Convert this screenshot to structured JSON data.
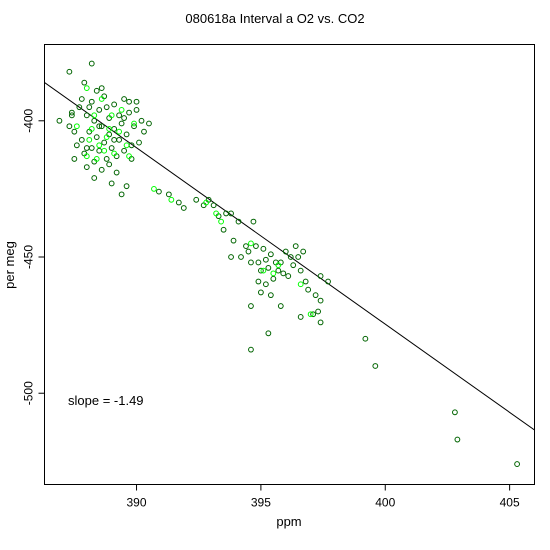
{
  "chart_data": {
    "type": "scatter",
    "title": "080618a   Interval a O2 vs. CO2",
    "xlabel": "ppm",
    "ylabel": "per meg",
    "xlim": [
      386.3,
      406.0
    ],
    "ylim": [
      -533.5,
      -372.0
    ],
    "xticks": [
      390,
      395,
      400,
      405
    ],
    "yticks": [
      -400,
      -450,
      -500
    ],
    "grid": false,
    "annotation": "slope =  -1.49",
    "fit_line": {
      "slope": -1.49,
      "points": [
        [
          386.0,
          -384.0
        ],
        [
          406.0,
          -513.5
        ]
      ]
    },
    "marker_colors": {
      "dark": "#006400",
      "light": "#00ff00"
    },
    "series": [
      {
        "color": "dark",
        "points": [
          [
            388.2,
            -379
          ],
          [
            387.3,
            -382
          ],
          [
            387.9,
            -386
          ],
          [
            388.6,
            -388
          ],
          [
            386.9,
            -400
          ],
          [
            387.3,
            -402
          ],
          [
            387.4,
            -397
          ],
          [
            387.5,
            -404
          ],
          [
            387.6,
            -409
          ],
          [
            387.7,
            -395
          ],
          [
            387.8,
            -407
          ],
          [
            387.9,
            -412
          ],
          [
            388.0,
            -398
          ],
          [
            388.1,
            -404
          ],
          [
            388.2,
            -410
          ],
          [
            388.2,
            -393
          ],
          [
            388.3,
            -400
          ],
          [
            388.3,
            -415
          ],
          [
            388.4,
            -406
          ],
          [
            388.5,
            -396
          ],
          [
            388.5,
            -411
          ],
          [
            388.6,
            -402
          ],
          [
            388.7,
            -408
          ],
          [
            388.7,
            -391
          ],
          [
            388.8,
            -414
          ],
          [
            388.9,
            -399
          ],
          [
            388.9,
            -405
          ],
          [
            389.0,
            -410
          ],
          [
            389.1,
            -394
          ],
          [
            389.1,
            -403
          ],
          [
            389.2,
            -413
          ],
          [
            389.3,
            -398
          ],
          [
            389.3,
            -407
          ],
          [
            389.4,
            -401
          ],
          [
            389.5,
            -411
          ],
          [
            389.5,
            -392
          ],
          [
            389.6,
            -405
          ],
          [
            389.7,
            -397
          ],
          [
            389.8,
            -409
          ],
          [
            389.9,
            -402
          ],
          [
            390.0,
            -396
          ],
          [
            390.1,
            -408
          ],
          [
            390.2,
            -400
          ],
          [
            390.3,
            -404
          ],
          [
            390.5,
            -401
          ],
          [
            388.0,
            -417
          ],
          [
            388.6,
            -418
          ],
          [
            389.2,
            -419
          ],
          [
            387.5,
            -414
          ],
          [
            389.8,
            -414
          ],
          [
            388.3,
            -421
          ],
          [
            389.0,
            -423
          ],
          [
            389.4,
            -427
          ],
          [
            389.6,
            -424
          ],
          [
            388.9,
            -416
          ],
          [
            387.8,
            -392
          ],
          [
            388.4,
            -389
          ],
          [
            389.7,
            -393
          ],
          [
            390.0,
            -393
          ],
          [
            387.4,
            -398
          ],
          [
            388.1,
            -395
          ],
          [
            388.8,
            -395
          ],
          [
            389.5,
            -399
          ],
          [
            388.5,
            -402
          ],
          [
            389.1,
            -407
          ],
          [
            388.0,
            -410
          ],
          [
            390.9,
            -426
          ],
          [
            391.3,
            -427
          ],
          [
            391.7,
            -430
          ],
          [
            391.9,
            -432
          ],
          [
            392.4,
            -429
          ],
          [
            392.7,
            -431
          ],
          [
            392.9,
            -429
          ],
          [
            393.1,
            -431
          ],
          [
            393.3,
            -435
          ],
          [
            393.6,
            -434
          ],
          [
            393.8,
            -434
          ],
          [
            394.1,
            -437
          ],
          [
            393.5,
            -440
          ],
          [
            393.9,
            -444
          ],
          [
            393.8,
            -450
          ],
          [
            394.2,
            -450
          ],
          [
            394.4,
            -446
          ],
          [
            394.5,
            -448
          ],
          [
            394.6,
            -452
          ],
          [
            394.7,
            -437
          ],
          [
            394.8,
            -446
          ],
          [
            394.9,
            -452
          ],
          [
            395.0,
            -455
          ],
          [
            395.1,
            -447
          ],
          [
            395.2,
            -451
          ],
          [
            395.3,
            -454
          ],
          [
            395.4,
            -449
          ],
          [
            395.5,
            -458
          ],
          [
            395.6,
            -452
          ],
          [
            395.7,
            -455
          ],
          [
            395.8,
            -452
          ],
          [
            395.9,
            -456
          ],
          [
            396.0,
            -448
          ],
          [
            396.1,
            -457
          ],
          [
            396.2,
            -450
          ],
          [
            396.3,
            -453
          ],
          [
            396.4,
            -446
          ],
          [
            396.5,
            -450
          ],
          [
            396.6,
            -455
          ],
          [
            396.7,
            -448
          ],
          [
            396.8,
            -459
          ],
          [
            396.9,
            -462
          ],
          [
            394.9,
            -459
          ],
          [
            395.0,
            -463
          ],
          [
            395.2,
            -460
          ],
          [
            394.6,
            -468
          ],
          [
            395.8,
            -468
          ],
          [
            396.6,
            -472
          ],
          [
            397.1,
            -471
          ],
          [
            397.2,
            -464
          ],
          [
            397.4,
            -466
          ],
          [
            397.7,
            -459
          ],
          [
            397.4,
            -457
          ],
          [
            397.4,
            -474
          ],
          [
            397.3,
            -470
          ],
          [
            394.6,
            -484
          ],
          [
            395.3,
            -478
          ],
          [
            395.4,
            -464
          ],
          [
            399.2,
            -480
          ],
          [
            399.6,
            -490
          ],
          [
            402.8,
            -507
          ],
          [
            402.9,
            -517
          ],
          [
            405.3,
            -526
          ]
        ]
      },
      {
        "color": "light",
        "points": [
          [
            388.0,
            -388
          ],
          [
            388.6,
            -392
          ],
          [
            387.6,
            -402
          ],
          [
            388.3,
            -398
          ],
          [
            388.9,
            -403
          ],
          [
            389.4,
            -396
          ],
          [
            388.1,
            -407
          ],
          [
            388.7,
            -411
          ],
          [
            389.3,
            -404
          ],
          [
            389.9,
            -401
          ],
          [
            388.4,
            -414
          ],
          [
            389.0,
            -398
          ],
          [
            388.2,
            -403
          ],
          [
            388.8,
            -406
          ],
          [
            389.6,
            -409
          ],
          [
            388.5,
            -409
          ],
          [
            389.1,
            -412
          ],
          [
            388.0,
            -413
          ],
          [
            389.7,
            -413
          ],
          [
            390.7,
            -425
          ],
          [
            391.4,
            -429
          ],
          [
            392.8,
            -430
          ],
          [
            393.4,
            -437
          ],
          [
            395.1,
            -455
          ],
          [
            395.7,
            -453
          ],
          [
            396.6,
            -460
          ],
          [
            397.0,
            -471
          ],
          [
            393.2,
            -434
          ],
          [
            395.5,
            -456
          ],
          [
            394.6,
            -445
          ]
        ]
      }
    ]
  }
}
